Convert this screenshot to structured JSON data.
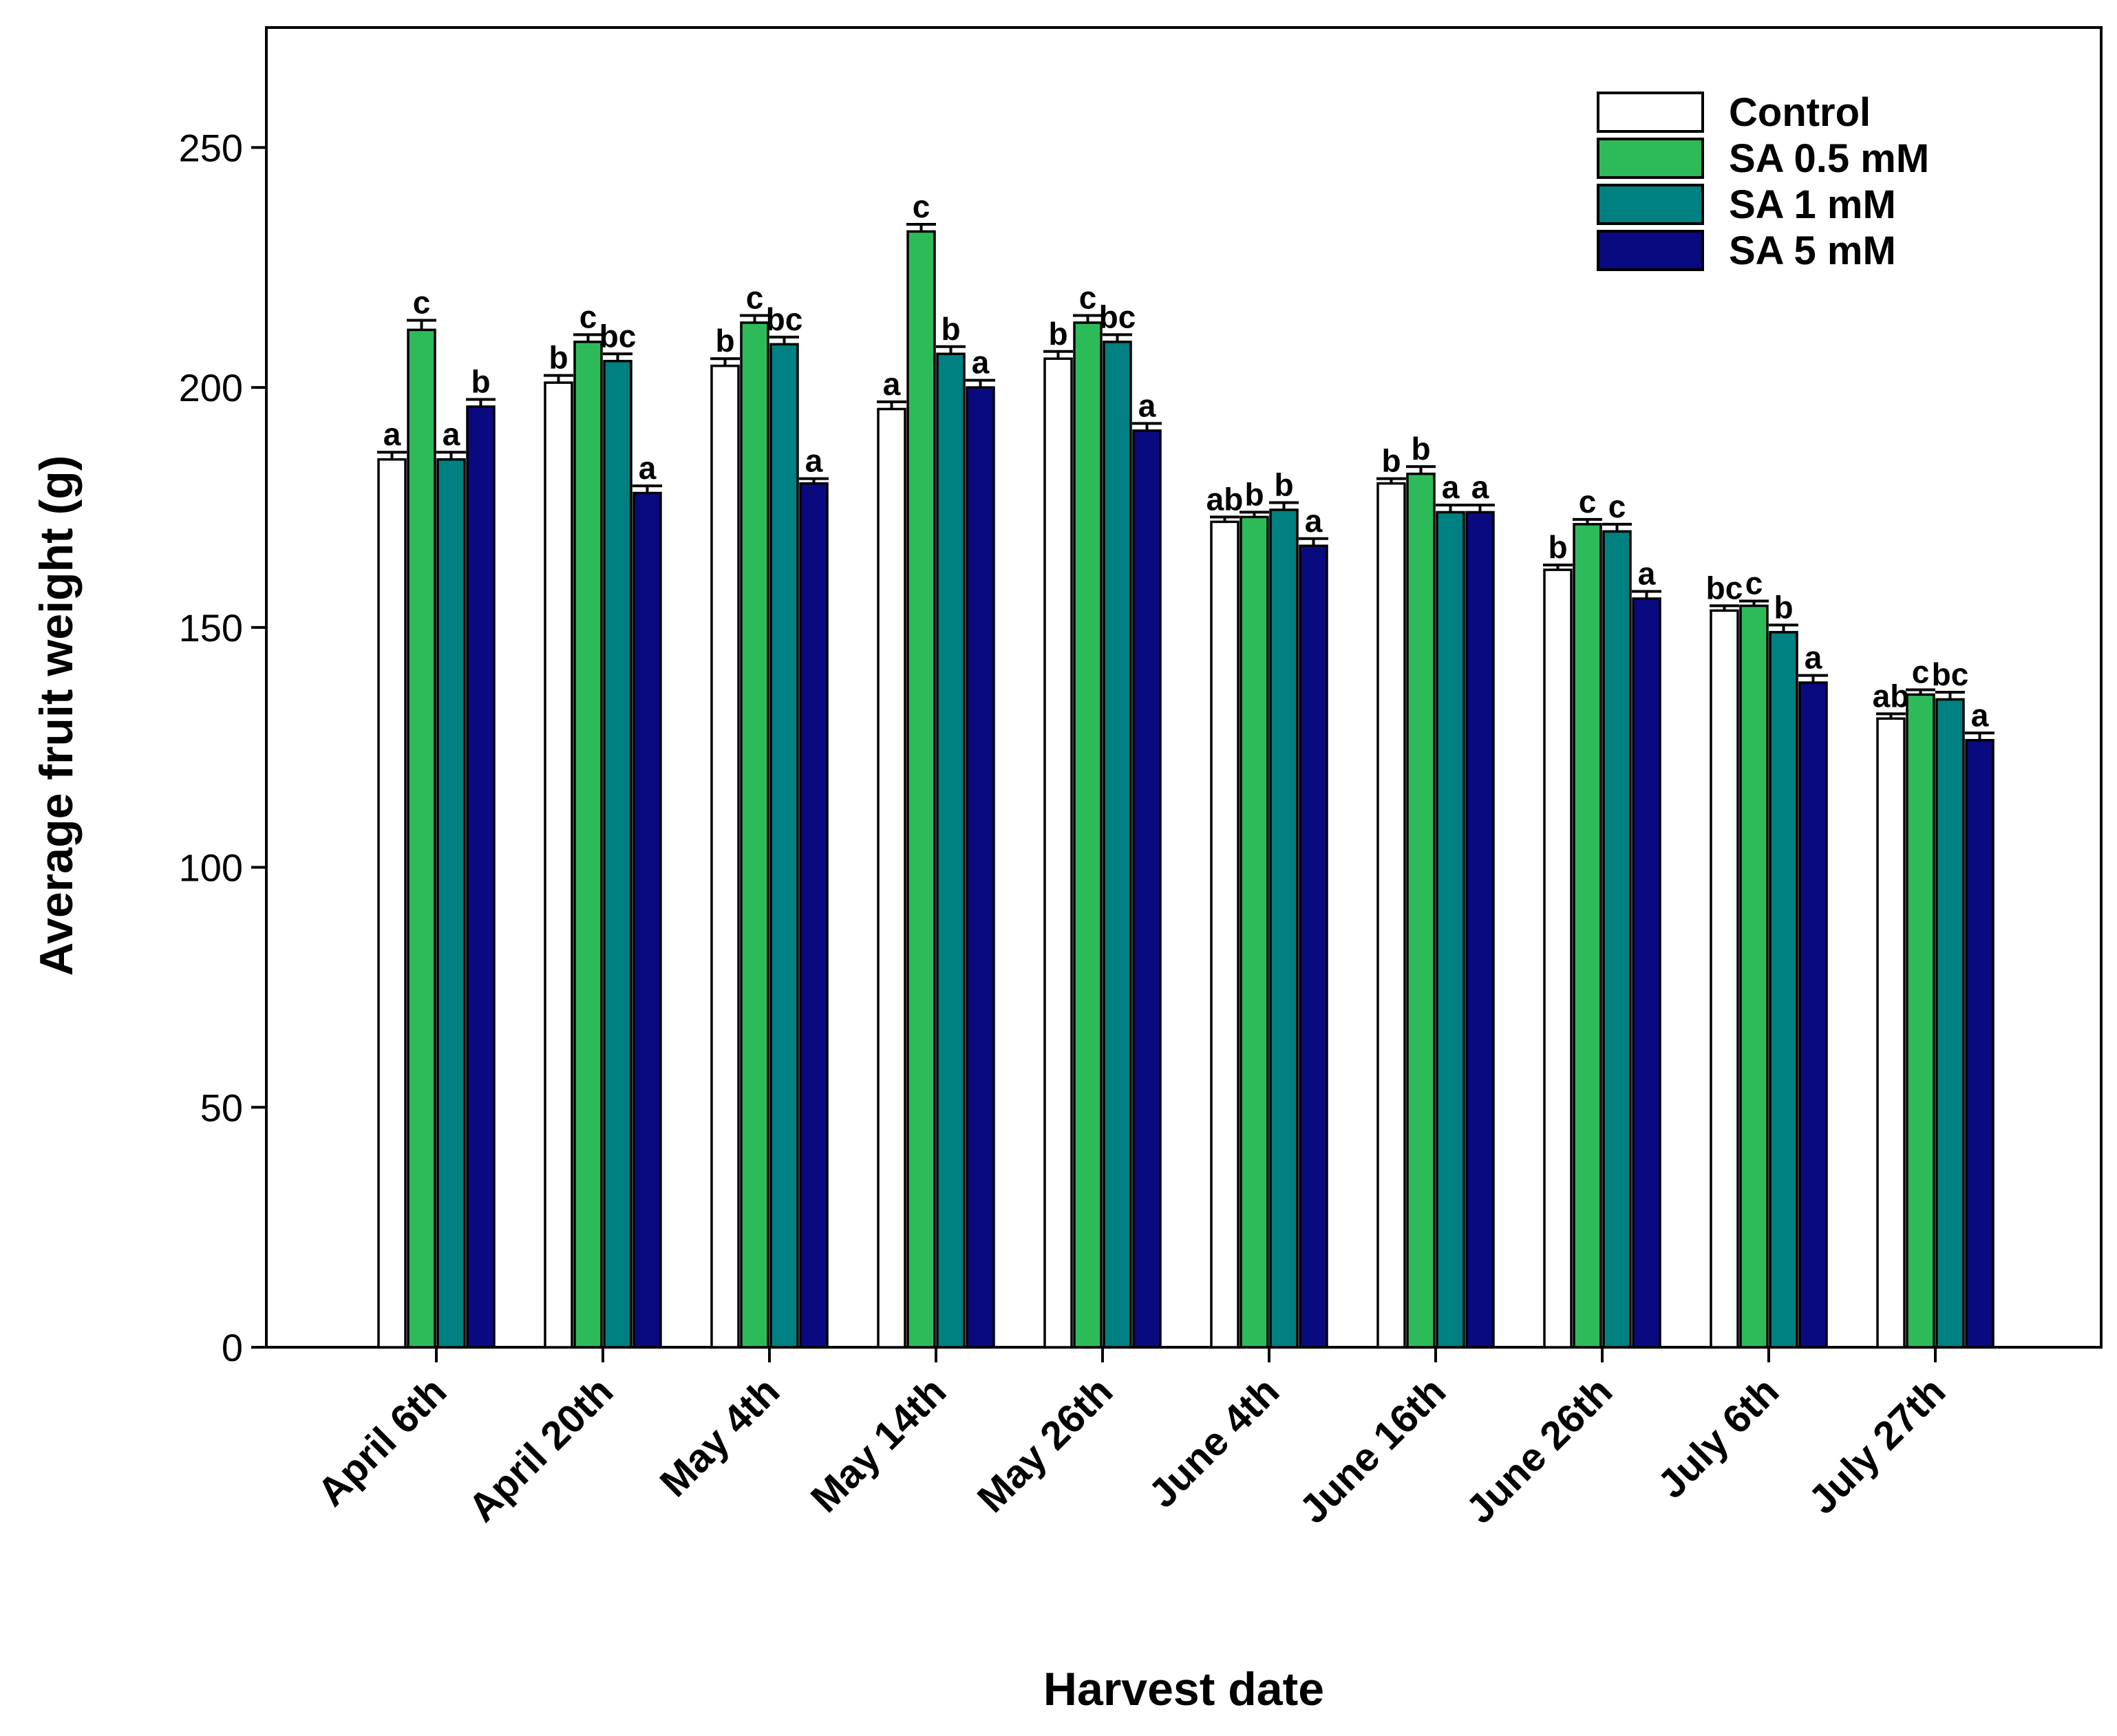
{
  "chart_data": {
    "type": "bar",
    "title": "",
    "xlabel": "Harvest date",
    "ylabel": "Average fruit weight (g)",
    "ylim": [
      0,
      275
    ],
    "yticks": [
      0,
      50,
      100,
      150,
      200,
      250
    ],
    "grid": false,
    "legend_position": "top-right",
    "categories": [
      "April 6th",
      "April 20th",
      "May 4th",
      "May 14th",
      "May 26th",
      "June 4th",
      "June 16th",
      "June 26th",
      "July 6th",
      "July 27th"
    ],
    "series": [
      {
        "name": "Control",
        "color": "#ffffff",
        "values": [
          185,
          201,
          204.5,
          195.5,
          206,
          172,
          180,
          162,
          153.5,
          131
        ],
        "errors": [
          1.5,
          1.5,
          1.5,
          1.5,
          1.5,
          1,
          1,
          1,
          1,
          1
        ],
        "letters": [
          "a",
          "b",
          "b",
          "a",
          "b",
          "ab",
          "b",
          "b",
          "bc",
          "ab"
        ]
      },
      {
        "name": "SA 0.5 mM",
        "color": "#2dbb5a",
        "values": [
          212,
          209.5,
          213.5,
          232.5,
          213.5,
          173,
          182,
          171.5,
          154.5,
          136
        ],
        "errors": [
          2,
          1.5,
          1.5,
          1.5,
          1.5,
          1,
          1.5,
          1,
          1,
          1
        ],
        "letters": [
          "c",
          "c",
          "c",
          "c",
          "c",
          "b",
          "b",
          "c",
          "c",
          "c"
        ]
      },
      {
        "name": "SA 1 mM",
        "color": "#008080",
        "values": [
          185,
          205.5,
          209,
          207,
          209.5,
          174.5,
          174,
          170,
          149,
          135
        ],
        "errors": [
          1.5,
          1.5,
          1.5,
          1.5,
          1.5,
          1.5,
          1.5,
          1.5,
          1.5,
          1.5
        ],
        "letters": [
          "a",
          "bc",
          "bc",
          "b",
          "bc",
          "b",
          "a",
          "c",
          "b",
          "bc"
        ]
      },
      {
        "name": "SA 5 mM",
        "color": "#0a0a80",
        "values": [
          196,
          178,
          180,
          200,
          191,
          167,
          174,
          156,
          138.5,
          126.5
        ],
        "errors": [
          1.5,
          1.5,
          1,
          1.5,
          1.5,
          1.5,
          1.5,
          1.5,
          1.5,
          1.5
        ],
        "letters": [
          "b",
          "a",
          "a",
          "a",
          "a",
          "a",
          "a",
          "a",
          "a",
          "a"
        ]
      }
    ]
  }
}
